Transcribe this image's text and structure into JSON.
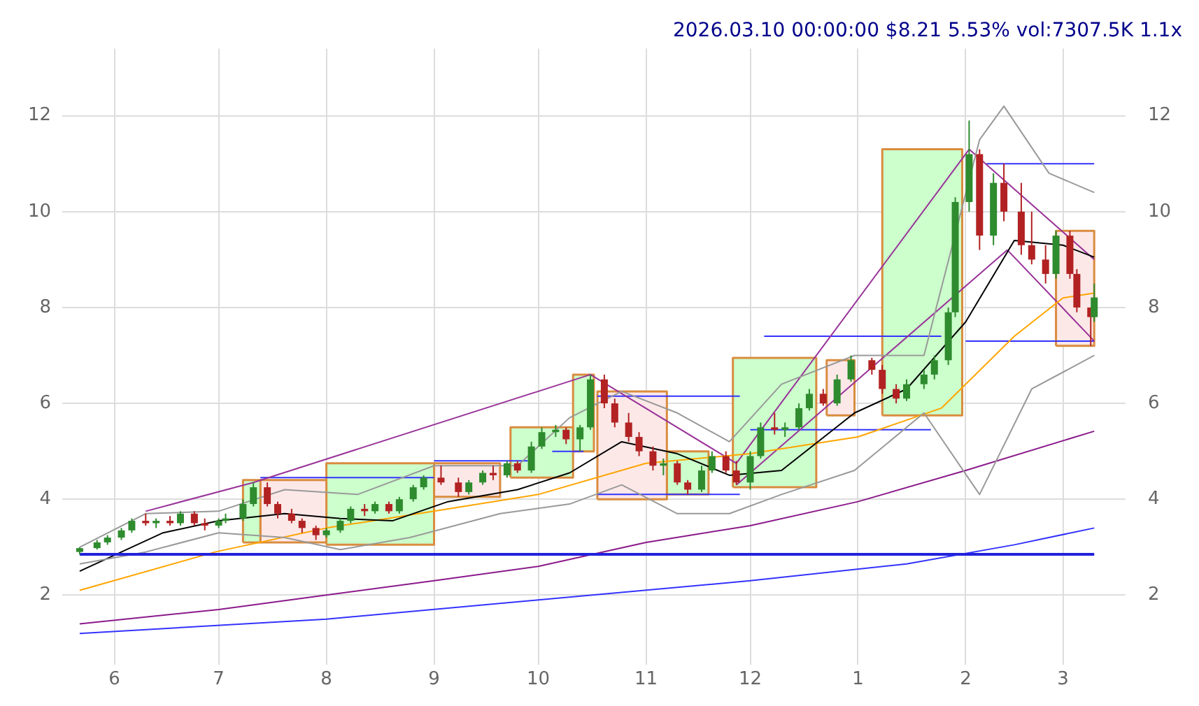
{
  "chart_data": {
    "type": "candlestick",
    "title": "2026.03.10 00:00:00 $8.21 5.53% vol:7307.5K 1.1x",
    "x": [
      "2025-05-22",
      "2025-05-27",
      "2025-05-30",
      "2025-06-03",
      "2025-06-06",
      "2025-06-10",
      "2025-06-13",
      "2025-06-17",
      "2025-06-20",
      "2025-06-24",
      "2025-06-27",
      "2025-07-01",
      "2025-07-03",
      "2025-07-08",
      "2025-07-11",
      "2025-07-15",
      "2025-07-18",
      "2025-07-22",
      "2025-07-25",
      "2025-07-29",
      "2025-08-01",
      "2025-08-05",
      "2025-08-08",
      "2025-08-12",
      "2025-08-15",
      "2025-08-19",
      "2025-08-22",
      "2025-08-26",
      "2025-08-29",
      "2025-09-03",
      "2025-09-08",
      "2025-09-11",
      "2025-09-15",
      "2025-09-18",
      "2025-09-22",
      "2025-09-25",
      "2025-09-29",
      "2025-10-02",
      "2025-10-06",
      "2025-10-09",
      "2025-10-13",
      "2025-10-16",
      "2025-10-20",
      "2025-10-23",
      "2025-10-27",
      "2025-10-30",
      "2025-11-03",
      "2025-11-06",
      "2025-11-10",
      "2025-11-13",
      "2025-11-17",
      "2025-11-20",
      "2025-11-24",
      "2025-11-27",
      "2025-12-01",
      "2025-12-04",
      "2025-12-08",
      "2025-12-11",
      "2025-12-15",
      "2025-12-18",
      "2025-12-22",
      "2025-12-26",
      "2025-12-30",
      "2026-01-05",
      "2026-01-08",
      "2026-01-12",
      "2026-01-15",
      "2026-01-20",
      "2026-01-23",
      "2026-01-27",
      "2026-01-29",
      "2026-02-02",
      "2026-02-05",
      "2026-02-09",
      "2026-02-12",
      "2026-02-17",
      "2026-02-20",
      "2026-02-24",
      "2026-02-27",
      "2026-03-03",
      "2026-03-05",
      "2026-03-09",
      "2026-03-10"
    ],
    "ohlc": [
      [
        2.9,
        3.0,
        2.85,
        2.98
      ],
      [
        2.98,
        3.15,
        2.95,
        3.1
      ],
      [
        3.1,
        3.25,
        3.05,
        3.2
      ],
      [
        3.2,
        3.4,
        3.15,
        3.35
      ],
      [
        3.35,
        3.6,
        3.3,
        3.55
      ],
      [
        3.55,
        3.7,
        3.45,
        3.5
      ],
      [
        3.5,
        3.6,
        3.4,
        3.55
      ],
      [
        3.55,
        3.65,
        3.45,
        3.5
      ],
      [
        3.5,
        3.75,
        3.45,
        3.7
      ],
      [
        3.7,
        3.75,
        3.45,
        3.5
      ],
      [
        3.5,
        3.6,
        3.35,
        3.45
      ],
      [
        3.45,
        3.6,
        3.4,
        3.55
      ],
      [
        3.55,
        3.7,
        3.5,
        3.6
      ],
      [
        3.6,
        4.0,
        3.55,
        3.9
      ],
      [
        3.9,
        4.35,
        3.85,
        4.25
      ],
      [
        4.25,
        4.35,
        3.85,
        3.9
      ],
      [
        3.9,
        3.95,
        3.6,
        3.7
      ],
      [
        3.7,
        3.8,
        3.5,
        3.55
      ],
      [
        3.55,
        3.6,
        3.3,
        3.4
      ],
      [
        3.4,
        3.45,
        3.15,
        3.25
      ],
      [
        3.25,
        3.4,
        3.2,
        3.35
      ],
      [
        3.35,
        3.6,
        3.3,
        3.55
      ],
      [
        3.55,
        3.85,
        3.5,
        3.8
      ],
      [
        3.8,
        3.9,
        3.65,
        3.75
      ],
      [
        3.75,
        3.95,
        3.7,
        3.9
      ],
      [
        3.9,
        3.95,
        3.7,
        3.75
      ],
      [
        3.75,
        4.05,
        3.7,
        4.0
      ],
      [
        4.0,
        4.3,
        3.95,
        4.25
      ],
      [
        4.25,
        4.5,
        4.2,
        4.45
      ],
      [
        4.45,
        4.7,
        4.3,
        4.35
      ],
      [
        4.35,
        4.45,
        4.05,
        4.15
      ],
      [
        4.15,
        4.4,
        4.1,
        4.35
      ],
      [
        4.35,
        4.6,
        4.3,
        4.55
      ],
      [
        4.55,
        4.7,
        4.4,
        4.5
      ],
      [
        4.5,
        4.8,
        4.45,
        4.75
      ],
      [
        4.75,
        4.8,
        4.55,
        4.6
      ],
      [
        4.6,
        5.2,
        4.55,
        5.1
      ],
      [
        5.1,
        5.5,
        5.05,
        5.4
      ],
      [
        5.4,
        5.55,
        5.3,
        5.45
      ],
      [
        5.45,
        5.5,
        5.15,
        5.25
      ],
      [
        5.25,
        5.55,
        5.0,
        5.5
      ],
      [
        5.5,
        6.6,
        5.45,
        6.5
      ],
      [
        6.5,
        6.6,
        5.9,
        6.0
      ],
      [
        6.0,
        6.1,
        5.5,
        5.6
      ],
      [
        5.6,
        5.8,
        5.2,
        5.3
      ],
      [
        5.3,
        5.4,
        4.9,
        5.0
      ],
      [
        5.0,
        5.1,
        4.6,
        4.7
      ],
      [
        4.7,
        4.85,
        4.5,
        4.75
      ],
      [
        4.75,
        4.8,
        4.3,
        4.35
      ],
      [
        4.35,
        4.4,
        4.1,
        4.2
      ],
      [
        4.2,
        4.7,
        4.15,
        4.6
      ],
      [
        4.6,
        5.0,
        4.55,
        4.9
      ],
      [
        4.9,
        5.0,
        4.55,
        4.6
      ],
      [
        4.6,
        4.8,
        4.3,
        4.35
      ],
      [
        4.35,
        5.0,
        4.2,
        4.9
      ],
      [
        4.9,
        5.6,
        4.85,
        5.5
      ],
      [
        5.5,
        5.8,
        5.35,
        5.45
      ],
      [
        5.45,
        5.6,
        5.3,
        5.5
      ],
      [
        5.5,
        6.0,
        5.45,
        5.9
      ],
      [
        5.9,
        6.3,
        5.85,
        6.2
      ],
      [
        6.2,
        6.3,
        5.95,
        6.0
      ],
      [
        6.0,
        6.6,
        5.95,
        6.5
      ],
      [
        6.5,
        7.0,
        6.45,
        6.9
      ],
      [
        6.9,
        6.95,
        6.6,
        6.7
      ],
      [
        6.7,
        6.8,
        6.2,
        6.3
      ],
      [
        6.3,
        6.4,
        6.0,
        6.1
      ],
      [
        6.1,
        6.5,
        6.05,
        6.4
      ],
      [
        6.4,
        6.7,
        6.3,
        6.6
      ],
      [
        6.6,
        7.0,
        6.5,
        6.9
      ],
      [
        6.9,
        8.0,
        6.8,
        7.9
      ],
      [
        7.9,
        10.3,
        7.8,
        10.2
      ],
      [
        10.2,
        11.9,
        10.0,
        11.2
      ],
      [
        11.2,
        11.3,
        9.2,
        9.5
      ],
      [
        9.5,
        10.8,
        9.3,
        10.6
      ],
      [
        10.6,
        11.0,
        9.8,
        10.0
      ],
      [
        10.0,
        10.6,
        9.1,
        9.3
      ],
      [
        9.3,
        10.0,
        8.9,
        9.0
      ],
      [
        9.0,
        9.3,
        8.5,
        8.7
      ],
      [
        8.7,
        9.6,
        8.6,
        9.5
      ],
      [
        9.5,
        9.6,
        8.6,
        8.7
      ],
      [
        8.7,
        8.8,
        7.9,
        8.0
      ],
      [
        8.0,
        8.0,
        7.2,
        7.8
      ],
      [
        7.8,
        8.5,
        7.7,
        8.21
      ]
    ],
    "colors": [
      "#2e8b2e",
      "#2e8b2e",
      "#2e8b2e",
      "#2e8b2e",
      "#2e8b2e",
      "#b22222",
      "#2e8b2e",
      "#b22222",
      "#2e8b2e",
      "#b22222",
      "#b22222",
      "#2e8b2e",
      "#2e8b2e",
      "#2e8b2e",
      "#2e8b2e",
      "#b22222",
      "#b22222",
      "#b22222",
      "#b22222",
      "#b22222",
      "#2e8b2e",
      "#2e8b2e",
      "#2e8b2e",
      "#b22222",
      "#2e8b2e",
      "#b22222",
      "#2e8b2e",
      "#2e8b2e",
      "#2e8b2e",
      "#b22222",
      "#b22222",
      "#2e8b2e",
      "#2e8b2e",
      "#b22222",
      "#2e8b2e",
      "#b22222",
      "#2e8b2e",
      "#2e8b2e",
      "#2e8b2e",
      "#b22222",
      "#2e8b2e",
      "#2e8b2e",
      "#b22222",
      "#b22222",
      "#b22222",
      "#b22222",
      "#b22222",
      "#2e8b2e",
      "#b22222",
      "#b22222",
      "#2e8b2e",
      "#2e8b2e",
      "#b22222",
      "#b22222",
      "#2e8b2e",
      "#2e8b2e",
      "#b22222",
      "#2e8b2e",
      "#2e8b2e",
      "#2e8b2e",
      "#b22222",
      "#2e8b2e",
      "#2e8b2e",
      "#b22222",
      "#b22222",
      "#b22222",
      "#2e8b2e",
      "#2e8b2e",
      "#2e8b2e",
      "#2e8b2e",
      "#2e8b2e",
      "#2e8b2e",
      "#b22222",
      "#2e8b2e",
      "#b22222",
      "#b22222",
      "#b22222",
      "#b22222",
      "#2e8b2e",
      "#b22222",
      "#b22222",
      "#b22222",
      "#2e8b2e"
    ],
    "series": [
      {
        "type": "area",
        "color": "#ccffcc",
        "x": [
          "2025-07-08",
          "2025-07-08",
          "2025-07-13",
          "2025-07-13",
          "2025-07-08"
        ],
        "values": [
          3.1,
          4.4,
          4.4,
          3.1,
          3.1
        ]
      },
      {
        "type": "area",
        "color": "#fde8e8",
        "x": [
          "2025-07-13",
          "2025-07-13",
          "2025-08-01",
          "2025-08-01",
          "2025-07-13"
        ],
        "values": [
          3.1,
          4.4,
          4.4,
          3.1,
          3.1
        ]
      },
      {
        "type": "area",
        "color": "#ccffcc",
        "x": [
          "2025-08-01",
          "2025-08-01",
          "2025-09-01",
          "2025-09-01",
          "2025-08-01"
        ],
        "values": [
          3.05,
          4.75,
          4.75,
          3.05,
          3.05
        ]
      },
      {
        "type": "area",
        "color": "#fde8e8",
        "x": [
          "2025-09-01",
          "2025-09-01",
          "2025-09-20",
          "2025-09-20",
          "2025-09-01"
        ],
        "values": [
          4.05,
          4.75,
          4.75,
          4.05,
          4.05
        ]
      },
      {
        "type": "area",
        "color": "#ccffcc",
        "x": [
          "2025-09-23",
          "2025-09-23",
          "2025-10-11",
          "2025-10-11",
          "2025-09-23"
        ],
        "values": [
          4.45,
          5.5,
          5.5,
          4.45,
          4.45
        ]
      },
      {
        "type": "area",
        "color": "#ccffcc",
        "x": [
          "2025-10-11",
          "2025-10-11",
          "2025-10-17",
          "2025-10-17",
          "2025-10-11"
        ],
        "values": [
          5.0,
          6.6,
          6.6,
          5.0,
          5.0
        ]
      },
      {
        "type": "area",
        "color": "#fde8e8",
        "x": [
          "2025-10-18",
          "2025-10-18",
          "2025-11-07",
          "2025-11-07",
          "2025-10-18"
        ],
        "values": [
          4.0,
          6.25,
          6.25,
          4.0,
          4.0
        ]
      },
      {
        "type": "area",
        "color": "#ccffcc",
        "x": [
          "2025-11-07",
          "2025-11-07",
          "2025-11-19",
          "2025-11-19",
          "2025-11-07"
        ],
        "values": [
          4.1,
          5.0,
          5.0,
          4.1,
          4.1
        ]
      },
      {
        "type": "area",
        "color": "#ccffcc",
        "x": [
          "2025-11-26",
          "2025-11-26",
          "2025-12-20",
          "2025-12-20",
          "2025-11-26"
        ],
        "values": [
          4.25,
          6.95,
          6.95,
          4.25,
          4.25
        ]
      },
      {
        "type": "area",
        "color": "#fde8e8",
        "x": [
          "2025-12-23",
          "2025-12-23",
          "2025-12-31",
          "2025-12-31",
          "2025-12-23"
        ],
        "values": [
          5.75,
          6.9,
          6.9,
          5.75,
          5.75
        ]
      },
      {
        "type": "area",
        "color": "#ccffcc",
        "x": [
          "2026-01-08",
          "2026-01-08",
          "2026-01-31",
          "2026-01-31",
          "2026-01-08"
        ],
        "values": [
          5.75,
          11.3,
          11.3,
          5.75,
          5.75
        ]
      },
      {
        "type": "area",
        "color": "#fde8e8",
        "x": [
          "2026-02-27",
          "2026-02-27",
          "2026-03-10",
          "2026-03-10",
          "2026-02-27"
        ],
        "values": [
          7.2,
          9.6,
          9.6,
          7.2,
          7.2
        ]
      },
      {
        "type": "line",
        "color": "#999999",
        "x": [
          "2025-05-22",
          "2025-06-10",
          "2025-07-01",
          "2025-07-20",
          "2025-08-10",
          "2025-09-01",
          "2025-09-25",
          "2025-10-10",
          "2025-10-25",
          "2025-11-10",
          "2025-11-25",
          "2025-12-10",
          "2025-12-31",
          "2026-01-20",
          "2026-02-05",
          "2026-02-12",
          "2026-02-25",
          "2026-03-10"
        ],
        "values": [
          3.0,
          3.7,
          3.75,
          4.2,
          4.1,
          4.7,
          4.7,
          5.7,
          6.25,
          5.8,
          5.2,
          6.4,
          7.0,
          7.0,
          11.5,
          12.2,
          10.8,
          10.4
        ]
      },
      {
        "type": "line",
        "color": "#999999",
        "x": [
          "2025-05-22",
          "2025-06-10",
          "2025-07-01",
          "2025-07-20",
          "2025-08-05",
          "2025-08-25",
          "2025-09-20",
          "2025-10-10",
          "2025-10-25",
          "2025-11-10",
          "2025-11-25",
          "2025-12-10",
          "2025-12-31",
          "2026-01-20",
          "2026-02-05",
          "2026-02-20",
          "2026-03-10"
        ],
        "values": [
          2.65,
          2.9,
          3.3,
          3.2,
          2.95,
          3.2,
          3.7,
          3.9,
          4.3,
          3.7,
          3.7,
          4.1,
          4.6,
          5.8,
          4.1,
          6.3,
          7.0
        ]
      },
      {
        "type": "line",
        "color": "#000000",
        "x": [
          "2025-05-22",
          "2025-06-15",
          "2025-07-01",
          "2025-07-20",
          "2025-08-05",
          "2025-08-20",
          "2025-09-05",
          "2025-09-25",
          "2025-10-10",
          "2025-10-25",
          "2025-11-10",
          "2025-11-25",
          "2025-12-10",
          "2025-12-31",
          "2026-01-15",
          "2026-02-01",
          "2026-02-15",
          "2026-03-01",
          "2026-03-10"
        ],
        "values": [
          2.5,
          3.3,
          3.55,
          3.7,
          3.6,
          3.55,
          3.95,
          4.2,
          4.55,
          5.2,
          4.95,
          4.5,
          4.6,
          5.8,
          6.3,
          7.7,
          9.4,
          9.3,
          9.05
        ]
      },
      {
        "type": "line",
        "color": "#ffa500",
        "x": [
          "2025-05-22",
          "2025-06-30",
          "2025-08-01",
          "2025-09-01",
          "2025-10-01",
          "2025-11-01",
          "2025-12-01",
          "2026-01-01",
          "2026-01-25",
          "2026-02-15",
          "2026-03-01",
          "2026-03-10"
        ],
        "values": [
          2.1,
          2.9,
          3.4,
          3.75,
          4.1,
          4.75,
          4.95,
          5.3,
          5.9,
          7.4,
          8.2,
          8.3
        ]
      },
      {
        "type": "line",
        "color": "#8b1a8b",
        "x": [
          "2025-05-22",
          "2025-07-01",
          "2025-08-01",
          "2025-09-01",
          "2025-10-01",
          "2025-11-01",
          "2025-12-01",
          "2026-01-01",
          "2026-02-01",
          "2026-03-10"
        ],
        "values": [
          1.4,
          1.7,
          2.0,
          2.3,
          2.6,
          3.1,
          3.45,
          3.95,
          4.6,
          5.42
        ]
      },
      {
        "type": "line",
        "color": "#3333ff",
        "x": [
          "2025-05-22",
          "2025-08-01",
          "2025-10-01",
          "2025-12-01",
          "2026-01-15",
          "2026-02-15",
          "2026-03-10"
        ],
        "values": [
          1.2,
          1.5,
          1.9,
          2.3,
          2.65,
          3.05,
          3.4
        ]
      },
      {
        "type": "line",
        "color": "#993399",
        "x": [
          "2025-06-10",
          "2025-07-11",
          "2025-10-16"
        ],
        "values": [
          3.75,
          4.35,
          6.6
        ]
      },
      {
        "type": "line",
        "color": "#993399",
        "x": [
          "2025-10-16",
          "2025-11-27"
        ],
        "values": [
          6.6,
          4.75
        ]
      },
      {
        "type": "line",
        "color": "#993399",
        "x": [
          "2025-11-27",
          "2026-02-02"
        ],
        "values": [
          4.75,
          11.3
        ]
      },
      {
        "type": "line",
        "color": "#993399",
        "x": [
          "2025-11-27",
          "2026-02-13"
        ],
        "values": [
          4.3,
          9.2
        ]
      },
      {
        "type": "line",
        "color": "#993399",
        "x": [
          "2026-02-02",
          "2026-03-10"
        ],
        "values": [
          11.3,
          9.0
        ]
      },
      {
        "type": "line",
        "color": "#993399",
        "x": [
          "2026-02-13",
          "2026-03-10"
        ],
        "values": [
          9.2,
          7.3
        ]
      },
      {
        "type": "line",
        "color": "#3333ff",
        "x": [
          "2025-07-13",
          "2025-09-01"
        ],
        "values": [
          4.45,
          4.45
        ]
      },
      {
        "type": "line",
        "color": "#3333ff",
        "x": [
          "2025-09-01",
          "2025-09-28"
        ],
        "values": [
          4.8,
          4.8
        ]
      },
      {
        "type": "line",
        "color": "#3333ff",
        "x": [
          "2025-10-05",
          "2025-10-14"
        ],
        "values": [
          5.0,
          5.0
        ]
      },
      {
        "type": "line",
        "color": "#3333ff",
        "x": [
          "2025-10-18",
          "2025-11-28"
        ],
        "values": [
          6.15,
          6.15
        ]
      },
      {
        "type": "line",
        "color": "#3333ff",
        "x": [
          "2025-10-18",
          "2025-11-28"
        ],
        "values": [
          4.1,
          4.1
        ]
      },
      {
        "type": "line",
        "color": "#3333ff",
        "x": [
          "2025-12-05",
          "2026-01-25"
        ],
        "values": [
          7.4,
          7.4
        ]
      },
      {
        "type": "line",
        "color": "#3333ff",
        "x": [
          "2025-12-01",
          "2026-01-22"
        ],
        "values": [
          5.45,
          5.45
        ]
      },
      {
        "type": "line",
        "color": "#3333ff",
        "x": [
          "2026-02-07",
          "2026-03-10"
        ],
        "values": [
          11.0,
          11.0
        ]
      },
      {
        "type": "line",
        "color": "#3333ff",
        "x": [
          "2026-02-01",
          "2026-03-10"
        ],
        "values": [
          7.3,
          7.3
        ]
      }
    ],
    "ref_lines": [
      {
        "axis": "y",
        "value": 2.85,
        "color": "#2222dd"
      }
    ],
    "xlim": [
      "2025-05-17",
      "2026-03-19"
    ],
    "xticks": [
      {
        "value": "2025-06-01",
        "label": "6"
      },
      {
        "value": "2025-07-01",
        "label": "7"
      },
      {
        "value": "2025-08-01",
        "label": "8"
      },
      {
        "value": "2025-09-01",
        "label": "9"
      },
      {
        "value": "2025-10-01",
        "label": "10"
      },
      {
        "value": "2025-11-01",
        "label": "11"
      },
      {
        "value": "2025-12-01",
        "label": "12"
      },
      {
        "value": "2026-01-01",
        "label": "1"
      },
      {
        "value": "2026-02-01",
        "label": "2"
      },
      {
        "value": "2026-03-01",
        "label": "3"
      }
    ],
    "ylim": [
      0.55,
      13.4
    ],
    "yticks": [
      2,
      4,
      6,
      8,
      10,
      12
    ],
    "y2lim": [
      0.55,
      13.4
    ],
    "y2ticks": [
      2,
      4,
      6,
      8,
      10,
      12
    ],
    "grid": true,
    "legend": false
  }
}
